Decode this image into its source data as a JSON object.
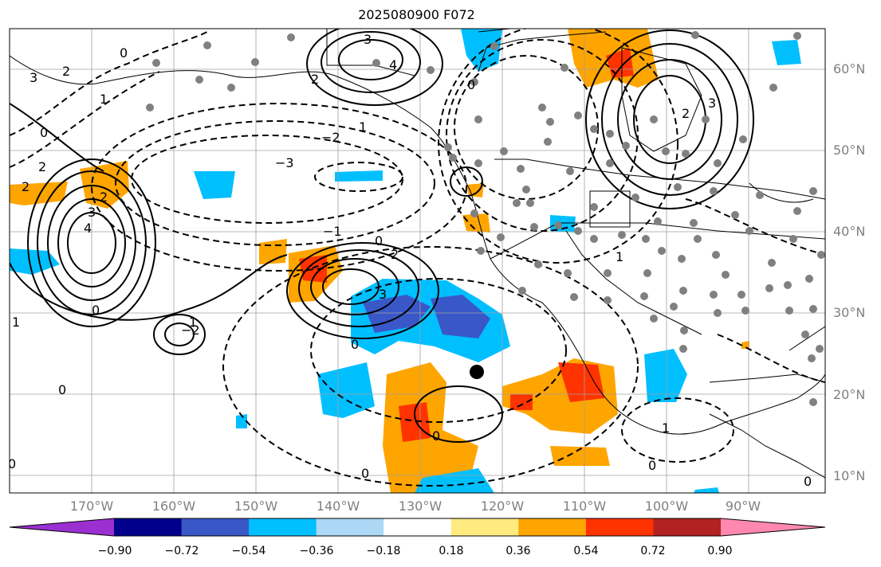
{
  "title": "2025080900 F072",
  "lat_labels": [
    "60°N",
    "50°N",
    "40°N",
    "30°N",
    "20°N",
    "10°N"
  ],
  "lon_labels": [
    "170°W",
    "160°W",
    "150°W",
    "140°W",
    "130°W",
    "120°W",
    "110°W",
    "100°W",
    "90°W"
  ],
  "colorbar": {
    "ticks": [
      "−0.90",
      "−0.72",
      "−0.54",
      "−0.36",
      "−0.18",
      "0.18",
      "0.36",
      "0.54",
      "0.72",
      "0.90"
    ],
    "colors": [
      "#9b30d0",
      "#00008b",
      "#3a57c8",
      "#00bfff",
      "#add8f5",
      "#ffffff",
      "#ffeb80",
      "#ffa500",
      "#ff3300",
      "#b22222",
      "#ff88b0"
    ]
  },
  "contour_labels": [
    "3",
    "4",
    "2",
    "1",
    "0",
    "−1",
    "−2",
    "−3"
  ],
  "colors": {
    "land_gray": "#808080",
    "contour": "#000000",
    "grid": "#a0a0a0"
  }
}
